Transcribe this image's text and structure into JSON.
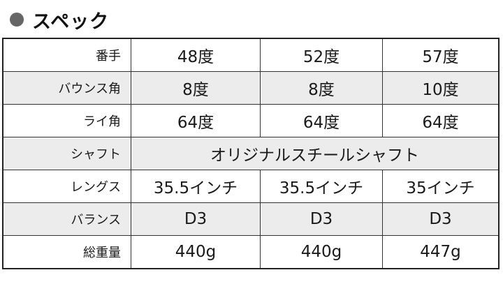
{
  "heading": {
    "bullet_icon": "filled-circle",
    "title": "スペック"
  },
  "table": {
    "rows": [
      {
        "label": "番手",
        "values": [
          "48度",
          "52度",
          "57度"
        ]
      },
      {
        "label": "バウンス角",
        "values": [
          "8度",
          "8度",
          "10度"
        ]
      },
      {
        "label": "ライ角",
        "values": [
          "64度",
          "64度",
          "64度"
        ]
      },
      {
        "label": "シャフト",
        "merged": "オリジナルスチールシャフト"
      },
      {
        "label": "レングス",
        "values": [
          "35.5インチ",
          "35.5インチ",
          "35インチ"
        ]
      },
      {
        "label": "バランス",
        "values": [
          "D3",
          "D3",
          "D3"
        ]
      },
      {
        "label": "総重量",
        "values": [
          "440g",
          "440g",
          "447g"
        ]
      }
    ],
    "shade_color": "#ececec"
  }
}
